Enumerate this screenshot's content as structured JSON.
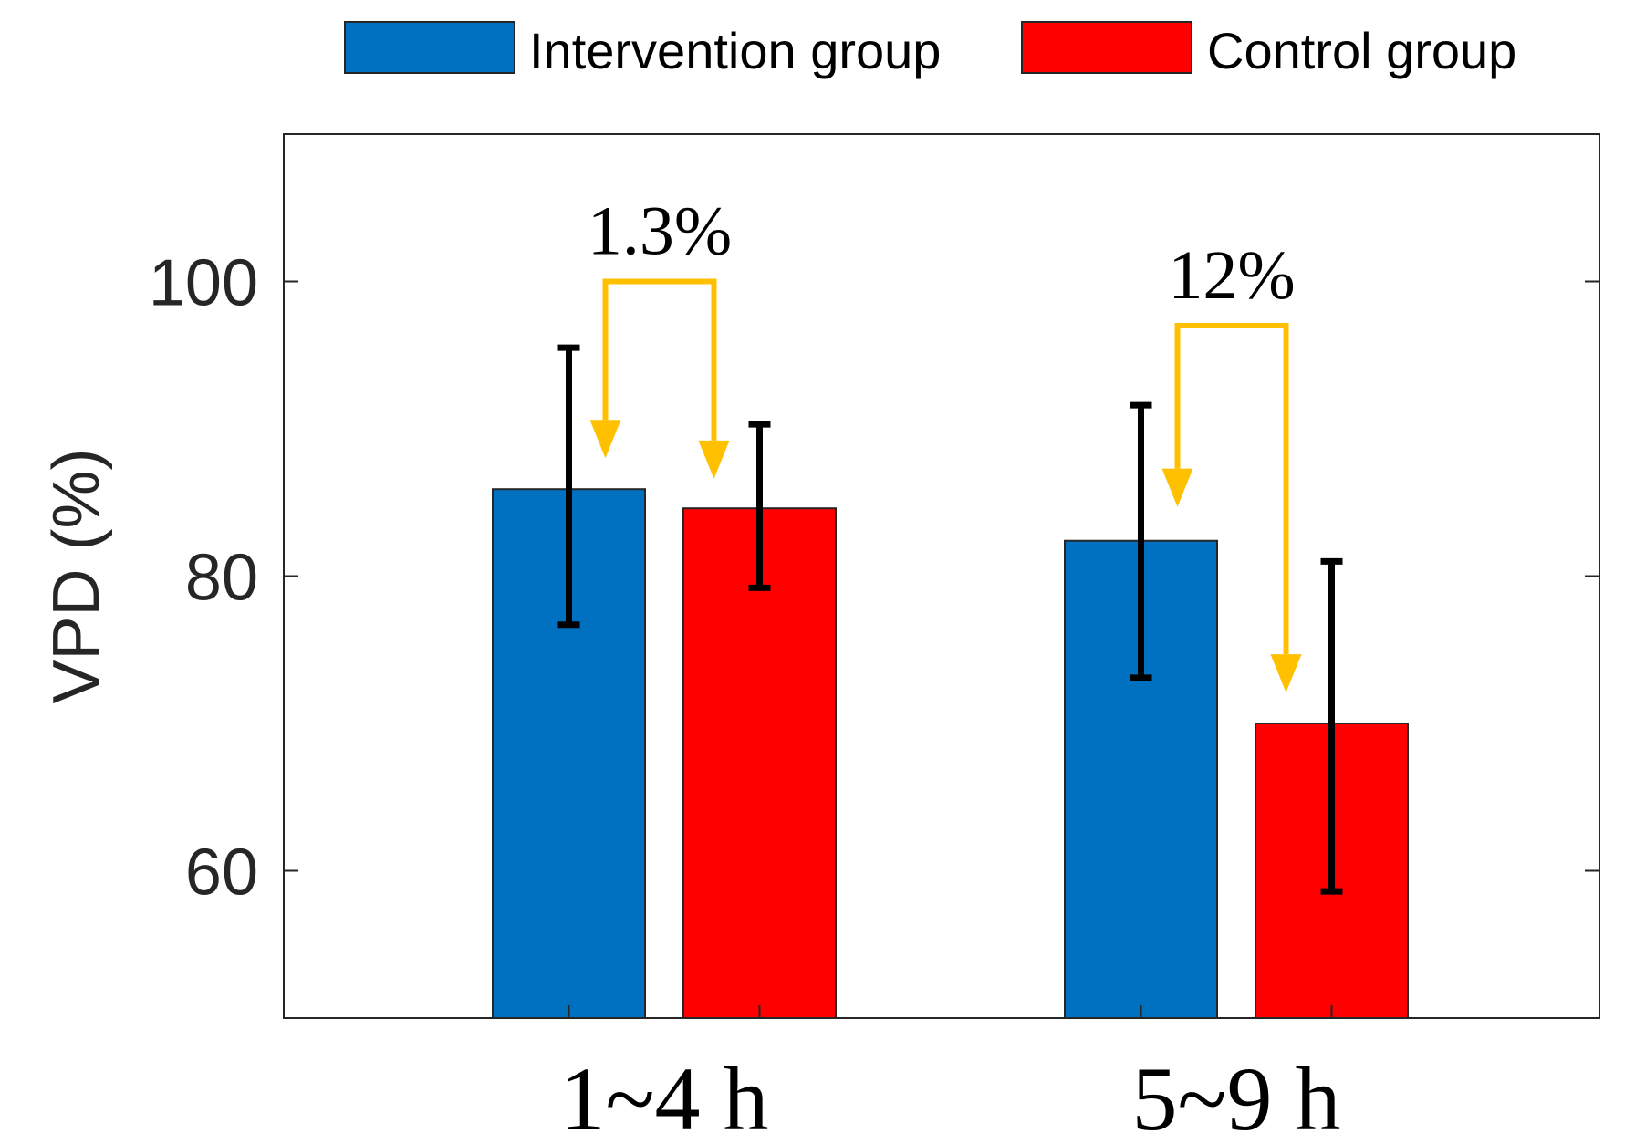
{
  "chart_data": {
    "type": "bar",
    "ylabel": "VPD (%)",
    "xlabel": "",
    "categories": [
      "1~4 h",
      "5~9 h"
    ],
    "ylim": [
      50,
      110
    ],
    "yticks": [
      60,
      80,
      100
    ],
    "series": [
      {
        "name": "Intervention group",
        "color": "#0070C0",
        "values": [
          85.9,
          82.4
        ],
        "err_low": [
          76.7,
          73.1
        ],
        "err_high": [
          95.5,
          91.6
        ]
      },
      {
        "name": "Control group",
        "color": "#FF0000",
        "values": [
          84.6,
          70.0
        ],
        "err_low": [
          79.2,
          58.6
        ],
        "err_high": [
          90.3,
          81.0
        ]
      }
    ],
    "annotations": [
      {
        "category": "1~4 h",
        "text": "1.3%",
        "arrow_color": "#FFC000",
        "from": 88.0,
        "to": 86.6,
        "top": 100.0
      },
      {
        "category": "5~9 h",
        "text": "12%",
        "arrow_color": "#FFC000",
        "from": 84.7,
        "to": 72.1,
        "top": 97.0
      }
    ],
    "legend": "top-center, outside plot",
    "grid": false
  }
}
